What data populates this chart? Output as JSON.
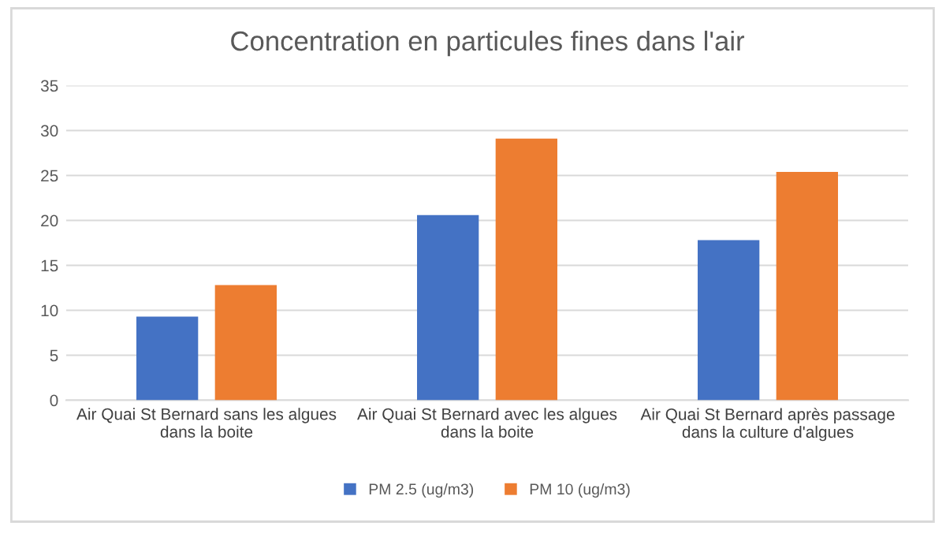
{
  "chart_data": {
    "type": "bar",
    "title": "Concentration en particules fines dans l'air",
    "categories": [
      "Air Quai St Bernard sans les algues\ndans la boite",
      "Air Quai St Bernard avec les algues\ndans la boite",
      "Air Quai St Bernard après passage\ndans la culture d'algues"
    ],
    "series": [
      {
        "name": "PM 2.5 (ug/m3)",
        "color": "#4472c4",
        "values": [
          9.3,
          20.6,
          17.8
        ]
      },
      {
        "name": "PM 10 (ug/m3)",
        "color": "#ed7d31",
        "values": [
          12.8,
          29.1,
          25.4
        ]
      }
    ],
    "ylim": [
      0,
      35
    ],
    "yticks": [
      0,
      5,
      10,
      15,
      20,
      25,
      30,
      35
    ],
    "grid": "y",
    "legend": "bottom"
  }
}
